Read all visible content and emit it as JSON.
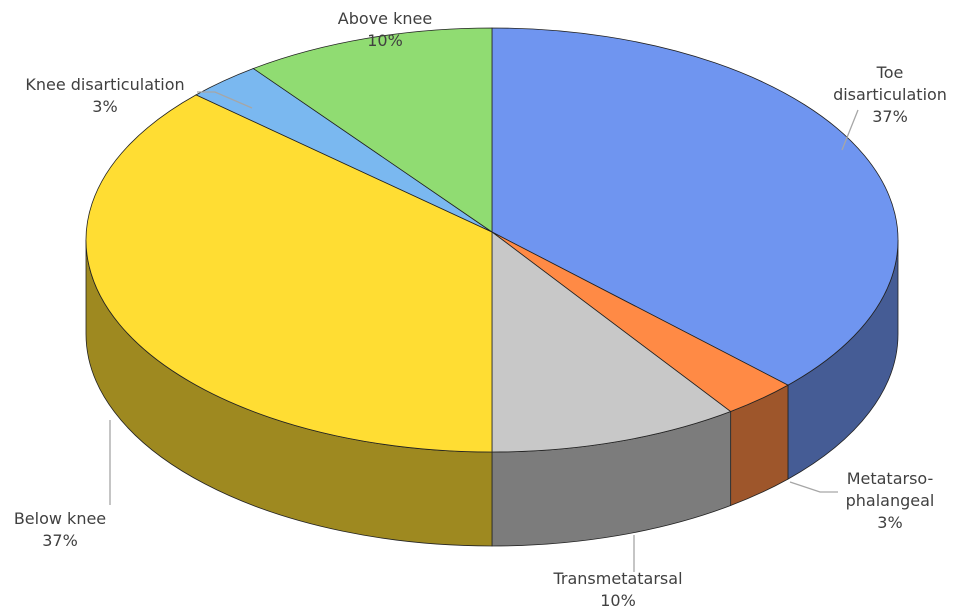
{
  "chart_data": {
    "type": "pie",
    "categories": [
      "Toe disarticulation",
      "Metatarso-phalangeal",
      "Transmetatarsal",
      "Below knee",
      "Knee disarticulation",
      "Above knee"
    ],
    "values": [
      37,
      3,
      10,
      37,
      3,
      10
    ],
    "value_labels": [
      "37%",
      "3%",
      "10%",
      "37%",
      "3%",
      "10%"
    ],
    "colors": [
      "#6f95f0",
      "#ff8a45",
      "#c8c8c8",
      "#ffdd33",
      "#7ab8f0",
      "#90dc72"
    ]
  }
}
